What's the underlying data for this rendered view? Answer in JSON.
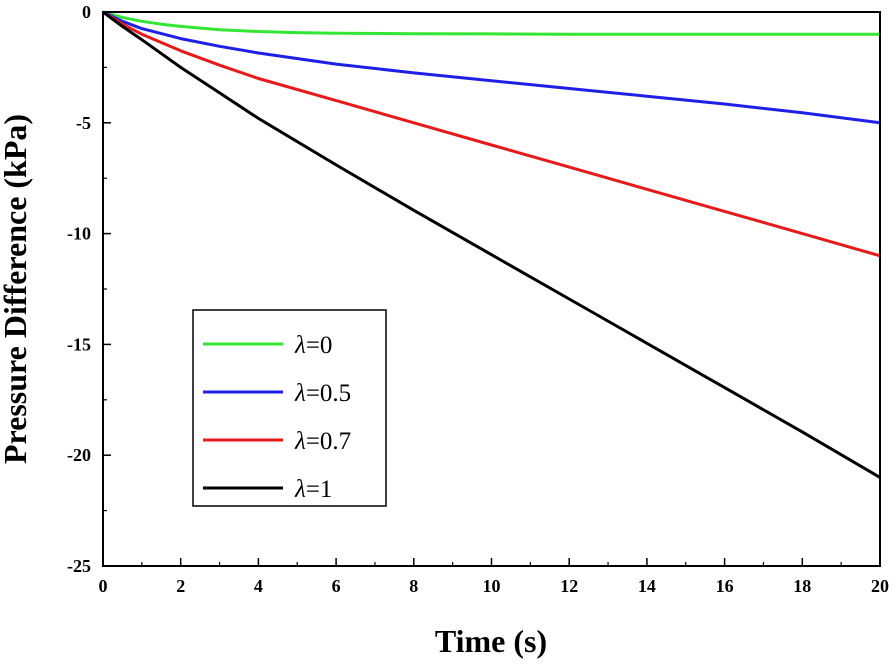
{
  "chart_data": {
    "type": "line",
    "xlabel": "Time (s)",
    "ylabel": "Pressure Difference (kPa)",
    "xlim": [
      0,
      20
    ],
    "ylim": [
      -25,
      0
    ],
    "xticks": [
      "0",
      "2",
      "4",
      "6",
      "8",
      "10",
      "12",
      "14",
      "16",
      "18",
      "20"
    ],
    "yticks": [
      "0",
      "-5",
      "-10",
      "-15",
      "-20",
      "-25"
    ],
    "grid": false,
    "legend_position": "bottom-left",
    "series": [
      {
        "name": "λ=0",
        "name_symbol": "λ",
        "name_value": "=0",
        "color": "#33e633",
        "x": [
          0,
          0.5,
          1,
          1.5,
          2,
          3,
          4,
          5,
          6,
          8,
          10,
          12,
          14,
          16,
          18,
          20
        ],
        "y": [
          0,
          -0.25,
          -0.42,
          -0.55,
          -0.65,
          -0.8,
          -0.88,
          -0.93,
          -0.96,
          -0.98,
          -0.99,
          -1.0,
          -1.0,
          -1.0,
          -1.0,
          -1.0
        ]
      },
      {
        "name": "λ=0.5",
        "name_symbol": "λ",
        "name_value": "=0.5",
        "color": "#1f1fe6",
        "x": [
          0,
          0.5,
          1,
          2,
          3,
          4,
          6,
          8,
          10,
          12,
          14,
          16,
          18,
          20
        ],
        "y": [
          0,
          -0.42,
          -0.75,
          -1.2,
          -1.55,
          -1.85,
          -2.35,
          -2.75,
          -3.1,
          -3.45,
          -3.8,
          -4.15,
          -4.55,
          -5.0
        ]
      },
      {
        "name": "λ=0.7",
        "name_symbol": "λ",
        "name_value": "=0.7",
        "color": "#e61a1a",
        "x": [
          0,
          0.5,
          1,
          2,
          3,
          4,
          6,
          8,
          10,
          12,
          14,
          16,
          18,
          20
        ],
        "y": [
          0,
          -0.55,
          -1.0,
          -1.75,
          -2.4,
          -3.0,
          -4.0,
          -5.0,
          -6.0,
          -7.0,
          -8.0,
          -9.0,
          -10.0,
          -11.0
        ]
      },
      {
        "name": "λ=1",
        "name_symbol": "λ",
        "name_value": "=1",
        "color": "#000000",
        "x": [
          0,
          0.5,
          1,
          2,
          3,
          4,
          6,
          8,
          10,
          12,
          14,
          16,
          18,
          20
        ],
        "y": [
          0,
          -0.65,
          -1.25,
          -2.5,
          -3.65,
          -4.8,
          -6.9,
          -8.95,
          -10.95,
          -12.95,
          -14.95,
          -16.95,
          -18.95,
          -21.0
        ]
      }
    ]
  }
}
